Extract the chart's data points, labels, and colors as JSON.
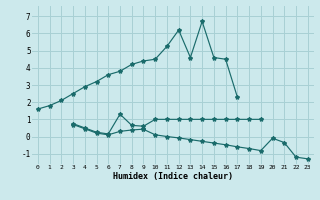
{
  "xlabel": "Humidex (Indice chaleur)",
  "bg_color": "#cce9ec",
  "grid_color": "#a8d0d4",
  "line_color": "#1a6b6b",
  "xlim": [
    -0.5,
    23.5
  ],
  "ylim": [
    -1.6,
    7.6
  ],
  "yticks": [
    -1,
    0,
    1,
    2,
    3,
    4,
    5,
    6,
    7
  ],
  "xticks": [
    0,
    1,
    2,
    3,
    4,
    5,
    6,
    7,
    8,
    9,
    10,
    11,
    12,
    13,
    14,
    15,
    16,
    17,
    18,
    19,
    20,
    21,
    22,
    23
  ],
  "series": [
    {
      "x": [
        0,
        1,
        2,
        3,
        4,
        5,
        6,
        7,
        8,
        9,
        10,
        11,
        12,
        13,
        14,
        15,
        16,
        17
      ],
      "y": [
        1.6,
        1.8,
        2.1,
        2.5,
        2.9,
        3.2,
        3.6,
        3.8,
        4.2,
        4.4,
        4.5,
        5.25,
        6.2,
        4.6,
        6.7,
        4.6,
        4.5,
        2.3
      ]
    },
    {
      "x": [
        3,
        4,
        5,
        6,
        7,
        8,
        9,
        10,
        11,
        12,
        13,
        14,
        15,
        16,
        17,
        18,
        19
      ],
      "y": [
        0.75,
        0.5,
        0.25,
        0.15,
        1.3,
        0.65,
        0.6,
        1.0,
        1.0,
        1.0,
        1.0,
        1.0,
        1.0,
        1.0,
        1.0,
        1.0,
        1.0
      ]
    },
    {
      "x": [
        3,
        4,
        5,
        6,
        7,
        8,
        9
      ],
      "y": [
        0.7,
        0.45,
        0.2,
        0.1,
        0.3,
        0.38,
        0.43
      ]
    },
    {
      "x": [
        9,
        10,
        11,
        12,
        13,
        14,
        15,
        16,
        17,
        18,
        19,
        20,
        21,
        22,
        23
      ],
      "y": [
        0.42,
        0.1,
        0.0,
        -0.08,
        -0.18,
        -0.28,
        -0.38,
        -0.48,
        -0.6,
        -0.7,
        -0.82,
        -0.1,
        -0.35,
        -1.2,
        -1.3
      ]
    }
  ]
}
